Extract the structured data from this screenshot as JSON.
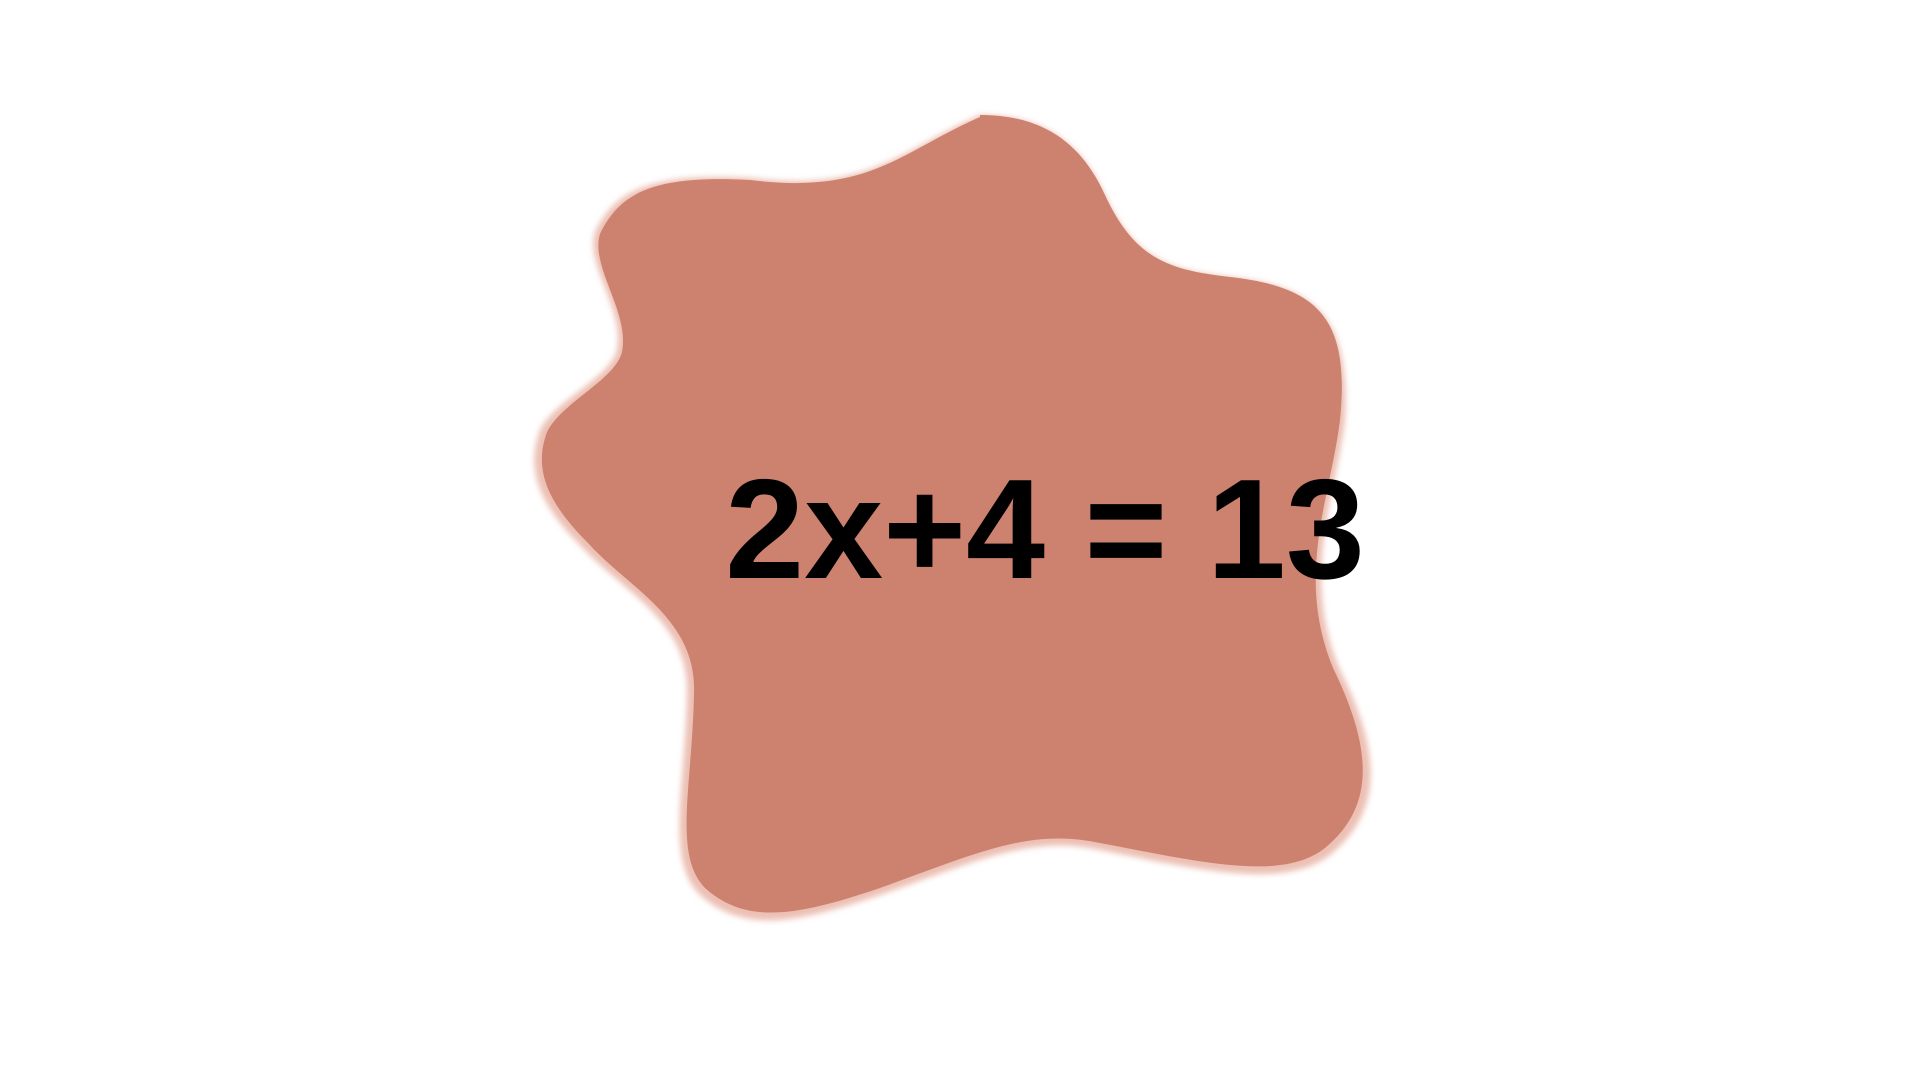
{
  "equation": "2x+4 = 13",
  "colors": {
    "background": "#ffffff",
    "blob_fill": "#cd8270",
    "blob_rim": "#ecc0b4",
    "text": "#000000"
  }
}
